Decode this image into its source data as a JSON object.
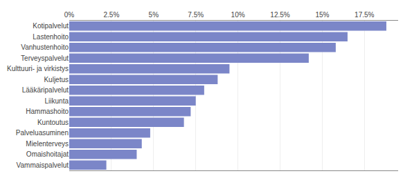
{
  "chart_data": {
    "type": "bar",
    "orientation": "horizontal",
    "categories": [
      "Vammaispalvelut",
      "Omaishoitajat",
      "Mielenterveys",
      "Palveluasuminen",
      "Kuntoutus",
      "Hammashoito",
      "Liikunta",
      "Lääkäripalvelut",
      "Kuljetus",
      "Kulttuuri- ja virkistys",
      "Terveyspalvelut",
      "Vanhustenhoito",
      "Lastenhoito",
      "Kotipalvelut"
    ],
    "values": [
      2.2,
      4.0,
      4.3,
      4.8,
      6.8,
      7.2,
      7.5,
      8.0,
      8.8,
      9.5,
      14.2,
      15.8,
      16.5,
      18.8
    ],
    "color": "#7B86C8",
    "xlim": [
      0,
      19.5
    ],
    "xticks": [
      {
        "value": 0,
        "label": "0%"
      },
      {
        "value": 2.5,
        "label": "2.5%"
      },
      {
        "value": 5.0,
        "label": "5%"
      },
      {
        "value": 7.5,
        "label": "7.5%"
      },
      {
        "value": 10.0,
        "label": "10%"
      },
      {
        "value": 12.5,
        "label": "12.5%"
      },
      {
        "value": 15.0,
        "label": "15%"
      },
      {
        "value": 17.5,
        "label": "17.5%"
      }
    ],
    "grid": true
  }
}
